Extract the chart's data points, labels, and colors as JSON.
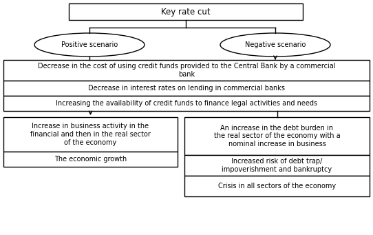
{
  "title_box": "Key rate cut",
  "positive_oval": "Positive scenario",
  "negative_oval": "Negative scenario",
  "shared_box1_line1": "Decrease in the cost of using credit funds provided to the Central Bank by a commercial",
  "shared_box1_line2": "bank",
  "shared_box2": "Decrease in interest rates on lending in commercial banks",
  "shared_box3": "Increasing the availability of credit funds to finance legal activities and needs",
  "pos_box1": "Increase in business activity in the\nfinancial and then in the real sector\nof the economy",
  "pos_box2": "The economic growth",
  "neg_box1": "An increase in the debt burden in\nthe real sector of the economy with a\nnominal increase in business",
  "neg_box2": "Increased risk of debt trap/\nimpoverishment and bankruptcy",
  "neg_box3": "Crisis in all sectors of the economy",
  "bg_color": "#ffffff",
  "box_edge_color": "#000000",
  "text_color": "#000000",
  "font_size": 7.0,
  "title_font_size": 8.5
}
